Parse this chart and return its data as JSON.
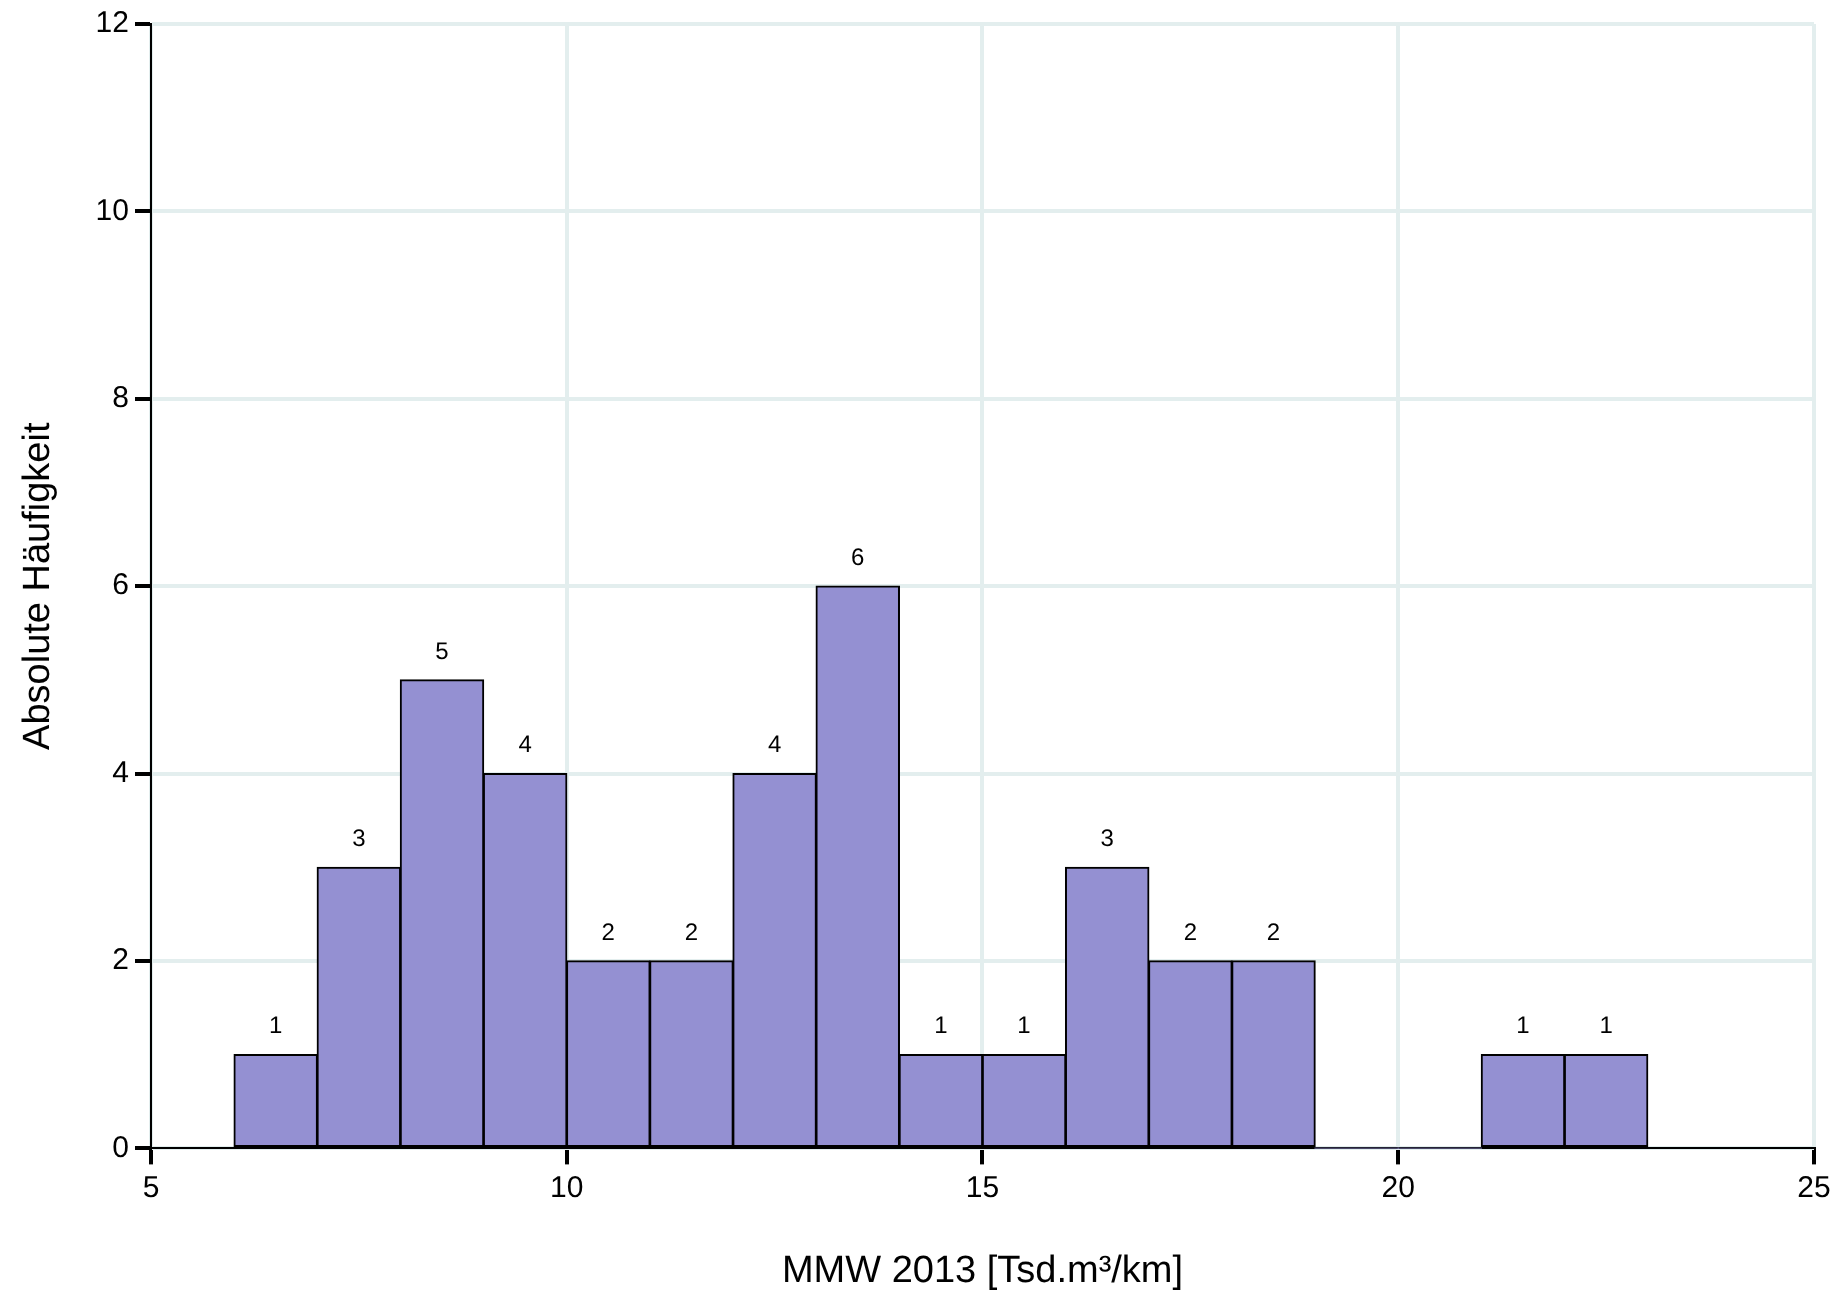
{
  "chart_data": {
    "type": "histogram",
    "xlabel": "MMW 2013 [Tsd.m³/km]",
    "ylabel": "Absolute Häufigkeit",
    "bins": [
      6,
      7,
      8,
      9,
      10,
      11,
      12,
      13,
      14,
      15,
      16,
      17,
      18,
      19,
      20,
      21,
      22,
      23
    ],
    "values": [
      1,
      3,
      5,
      4,
      2,
      2,
      4,
      6,
      1,
      1,
      3,
      2,
      2,
      0,
      0,
      1,
      1
    ],
    "value_labels": [
      "1",
      "3",
      "5",
      "4",
      "2",
      "2",
      "4",
      "6",
      "1",
      "1",
      "3",
      "2",
      "2",
      null,
      null,
      "1",
      "1"
    ],
    "color": "#9490d2",
    "xlim": [
      5,
      25
    ],
    "xticks": [
      5,
      10,
      15,
      20,
      25
    ],
    "ylim": [
      0,
      12
    ],
    "yticks": [
      0,
      2,
      4,
      6,
      8,
      10,
      12
    ],
    "grid": true,
    "legend": false
  }
}
